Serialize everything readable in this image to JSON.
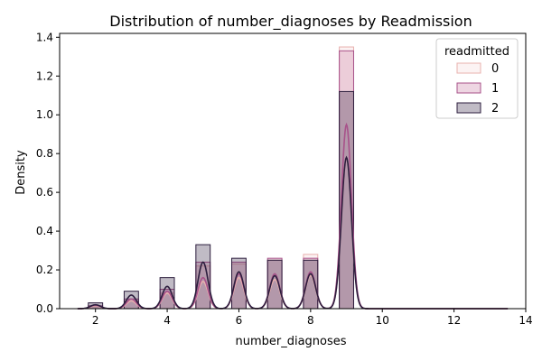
{
  "chart_data": {
    "type": "histogram",
    "title": "Distribution of number_diagnoses by Readmission",
    "xlabel": "number_diagnoses",
    "ylabel": "Density",
    "xlim": [
      1.0,
      14.0
    ],
    "ylim": [
      0.0,
      1.42
    ],
    "x_ticks": [
      "2",
      "4",
      "6",
      "8",
      "10",
      "12",
      "14"
    ],
    "y_ticks": [
      "0.0",
      "0.2",
      "0.4",
      "0.6",
      "0.8",
      "1.0",
      "1.2",
      "1.4"
    ],
    "grid": false,
    "legend": {
      "title": "readmitted",
      "position": "top-right"
    },
    "bin_centers": [
      2,
      3,
      4,
      5,
      6,
      7,
      8,
      9
    ],
    "bin_width": 0.4,
    "series": [
      {
        "name": "0",
        "color": "#f5d6d6",
        "edge": "#e8b0ae",
        "values": [
          0.01,
          0.04,
          0.08,
          0.22,
          0.23,
          0.25,
          0.28,
          1.35
        ],
        "kde_peaks": [
          0.015,
          0.04,
          0.08,
          0.14,
          0.16,
          0.15,
          0.17,
          0.78
        ]
      },
      {
        "name": "1",
        "color": "#c8779e",
        "edge": "#a8528a",
        "values": [
          0.015,
          0.05,
          0.1,
          0.24,
          0.24,
          0.26,
          0.26,
          1.33
        ],
        "kde_peaks": [
          0.018,
          0.05,
          0.09,
          0.16,
          0.18,
          0.18,
          0.19,
          0.95
        ]
      },
      {
        "name": "2",
        "color": "#2d1e3e",
        "edge": "#2d1e3e",
        "values": [
          0.03,
          0.09,
          0.16,
          0.33,
          0.26,
          0.25,
          0.25,
          1.12
        ],
        "kde_peaks": [
          0.02,
          0.07,
          0.115,
          0.24,
          0.19,
          0.17,
          0.18,
          0.78
        ]
      }
    ]
  }
}
